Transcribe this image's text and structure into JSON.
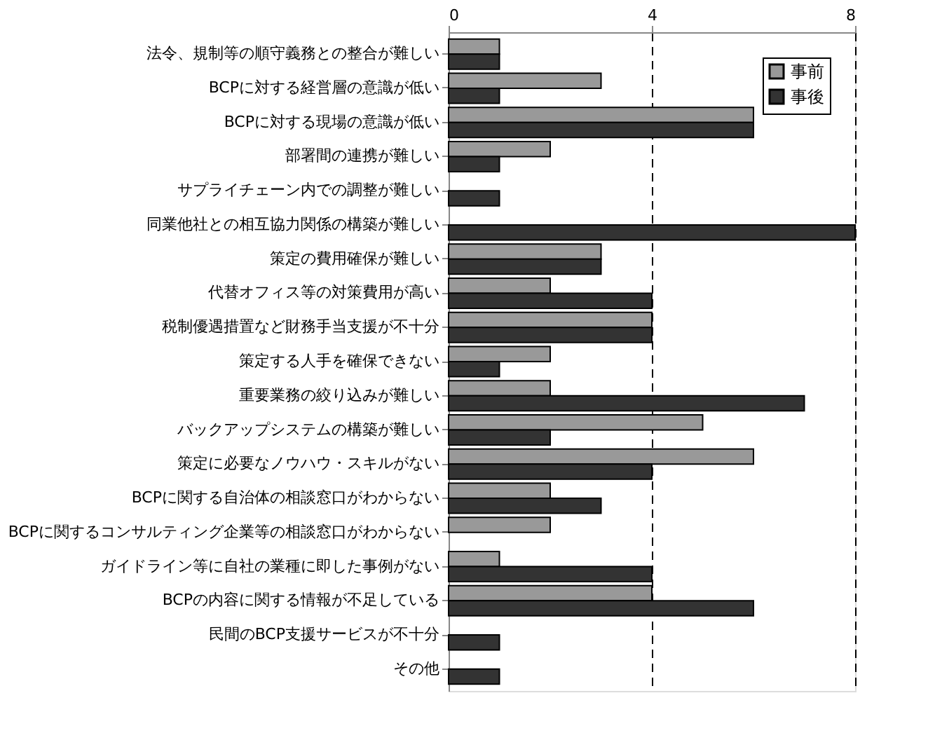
{
  "chart_data": {
    "type": "bar",
    "orientation": "horizontal",
    "categories": [
      "法令、規制等の順守義務との整合が難しい",
      "BCPに対する経営層の意識が低い",
      "BCPに対する現場の意識が低い",
      "部署間の連携が難しい",
      "サプライチェーン内での調整が難しい",
      "同業他社との相互協力関係の構築が難しい",
      "策定の費用確保が難しい",
      "代替オフィス等の対策費用が高い",
      "税制優遇措置など財務手当支援が不十分",
      "策定する人手を確保できない",
      "重要業務の絞り込みが難しい",
      "バックアップシステムの構築が難しい",
      "策定に必要なノウハウ・スキルがない",
      "BCPに関する自治体の相談窓口がわからない",
      "BCPに関するコンサルティング企業等の相談窓口がわからない",
      "ガイドライン等に自社の業種に即した事例がない",
      "BCPの内容に関する情報が不足している",
      "民間のBCP支援サービスが不十分",
      "その他"
    ],
    "series": [
      {
        "name": "事前",
        "color": "#999999",
        "values": [
          1,
          3,
          6,
          2,
          0,
          0,
          3,
          2,
          4,
          2,
          2,
          5,
          6,
          2,
          2,
          1,
          4,
          0,
          0
        ]
      },
      {
        "name": "事後",
        "color": "#333333",
        "values": [
          1,
          1,
          6,
          1,
          1,
          8,
          3,
          4,
          4,
          1,
          7,
          2,
          4,
          3,
          0,
          4,
          6,
          1,
          1
        ]
      }
    ],
    "xlim": [
      0,
      8
    ],
    "xticks": [
      0,
      4,
      8
    ],
    "grid": "x",
    "legend": "top right"
  }
}
